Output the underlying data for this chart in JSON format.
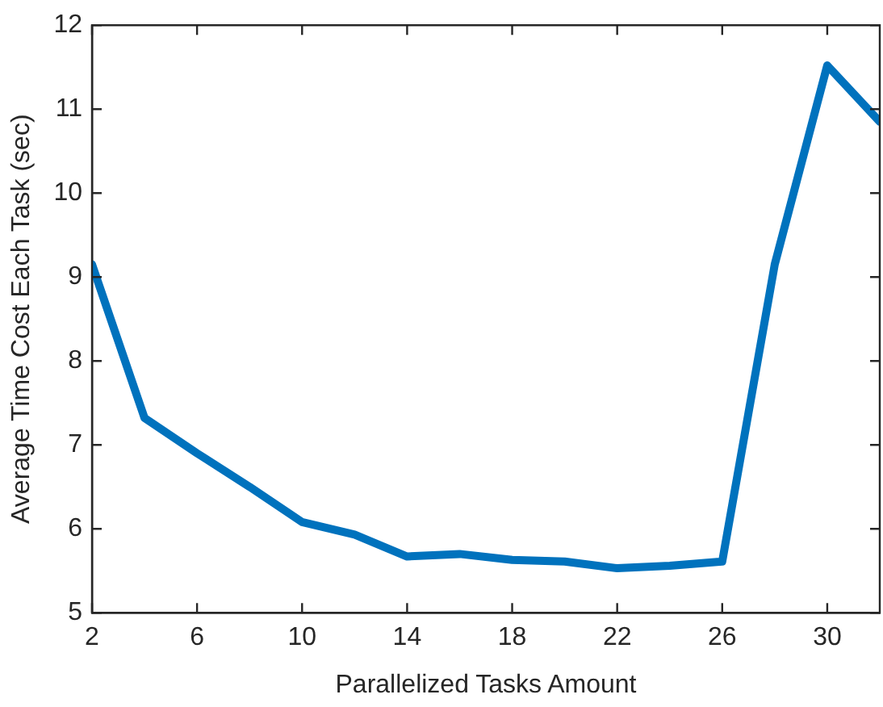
{
  "chart_data": {
    "type": "line",
    "xlabel": "Parallelized Tasks Amount",
    "ylabel": "Average Time Cost Each Task (sec)",
    "x": [
      2,
      4,
      6,
      8,
      10,
      12,
      14,
      16,
      18,
      20,
      22,
      24,
      26,
      28,
      30,
      32
    ],
    "series": [
      {
        "color": "#0072bd",
        "values": [
          9.15,
          7.32,
          6.9,
          6.5,
          6.08,
          5.93,
          5.67,
          5.7,
          5.63,
          5.61,
          5.53,
          5.56,
          5.61,
          9.15,
          11.52,
          10.85
        ]
      }
    ],
    "xlim": [
      2,
      32
    ],
    "xticks": [
      2,
      6,
      10,
      14,
      18,
      22,
      26,
      30
    ],
    "ylim": [
      5,
      12
    ],
    "yticks": [
      5,
      6,
      7,
      8,
      9,
      10,
      11,
      12
    ],
    "grid": false,
    "legend": false,
    "marker": "none",
    "line_style": "solid"
  }
}
